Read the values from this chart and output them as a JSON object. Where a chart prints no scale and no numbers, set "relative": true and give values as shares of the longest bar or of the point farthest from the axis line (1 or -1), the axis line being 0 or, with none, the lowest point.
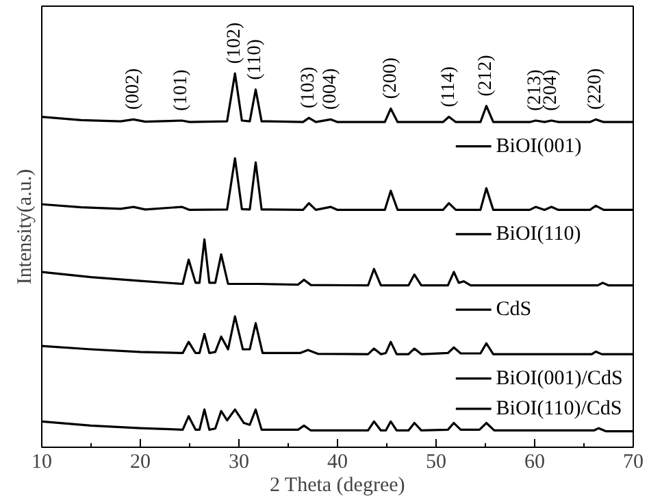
{
  "chart_data": {
    "type": "line",
    "relative": true,
    "xlabel": "2 Theta (degree)",
    "ylabel": "Intensity(a.u.)",
    "xlim": [
      10,
      70
    ],
    "xticks": [
      10,
      20,
      30,
      40,
      50,
      60,
      70
    ],
    "grid": false,
    "legend": "right",
    "marker": "none",
    "line_style": "solid",
    "series": [
      {
        "name": "BiOI(001)",
        "color": "#000000",
        "x": [
          10,
          14,
          18,
          19.3,
          20.5,
          24.2,
          25,
          28.8,
          29.6,
          30.3,
          31.1,
          31.7,
          32.3,
          33,
          36.5,
          37.1,
          37.8,
          39.3,
          40,
          44.8,
          45.4,
          46.1,
          50.7,
          51.3,
          52,
          54.5,
          55.1,
          55.8,
          59.5,
          60.1,
          61,
          61.7,
          62.4,
          65.6,
          66.2,
          67,
          70
        ],
        "values": [
          0.884,
          0.875,
          0.872,
          0.877,
          0.871,
          0.874,
          0.87,
          0.872,
          1.0,
          0.874,
          0.872,
          0.957,
          0.872,
          0.872,
          0.87,
          0.881,
          0.87,
          0.877,
          0.87,
          0.87,
          0.906,
          0.87,
          0.87,
          0.884,
          0.87,
          0.87,
          0.913,
          0.87,
          0.87,
          0.874,
          0.87,
          0.874,
          0.87,
          0.87,
          0.877,
          0.87,
          0.87
        ]
      },
      {
        "name": "BiOI(110)",
        "color": "#000000",
        "x": [
          10,
          14,
          18,
          19.3,
          20.5,
          24.2,
          25,
          28.8,
          29.6,
          30.3,
          31.1,
          31.7,
          32.3,
          33,
          36.5,
          37.1,
          37.8,
          39.3,
          40,
          44.8,
          45.4,
          46.1,
          50.7,
          51.3,
          52,
          54.5,
          55.1,
          55.8,
          59.5,
          60.1,
          61,
          61.7,
          62.4,
          65.6,
          66.2,
          67,
          70
        ],
        "values": [
          0.65,
          0.642,
          0.638,
          0.643,
          0.636,
          0.643,
          0.635,
          0.636,
          0.773,
          0.637,
          0.636,
          0.762,
          0.636,
          0.636,
          0.635,
          0.653,
          0.635,
          0.643,
          0.635,
          0.635,
          0.686,
          0.635,
          0.635,
          0.653,
          0.635,
          0.635,
          0.693,
          0.635,
          0.635,
          0.643,
          0.635,
          0.643,
          0.635,
          0.635,
          0.646,
          0.635,
          0.635
        ]
      },
      {
        "name": "CdS",
        "color": "#000000",
        "x": [
          10,
          15,
          20,
          24.3,
          24.9,
          25.6,
          26,
          26.5,
          27,
          27.6,
          28.2,
          28.9,
          32,
          36,
          36.6,
          37.3,
          43.1,
          43.7,
          44.4,
          47.2,
          47.8,
          48.5,
          51.2,
          51.8,
          52.3,
          52.8,
          53.5,
          66.4,
          66.9,
          67.5,
          70
        ],
        "values": [
          0.469,
          0.455,
          0.445,
          0.437,
          0.502,
          0.44,
          0.44,
          0.556,
          0.44,
          0.44,
          0.516,
          0.437,
          0.437,
          0.435,
          0.448,
          0.434,
          0.433,
          0.477,
          0.433,
          0.433,
          0.462,
          0.433,
          0.433,
          0.469,
          0.44,
          0.444,
          0.433,
          0.433,
          0.44,
          0.433,
          0.433
        ]
      },
      {
        "name": "BiOI(001)/CdS",
        "color": "#000000",
        "x": [
          10,
          15,
          20,
          24.3,
          24.9,
          25.6,
          26,
          26.5,
          27,
          27.6,
          28.2,
          28.9,
          29.6,
          30.4,
          31.1,
          31.7,
          32.4,
          36.2,
          37,
          38,
          43.1,
          43.7,
          44.4,
          44.9,
          45.4,
          46,
          47.2,
          47.8,
          48.5,
          51.2,
          51.8,
          52.5,
          54.5,
          55.1,
          55.8,
          65.8,
          66.2,
          66.8,
          70
        ],
        "values": [
          0.271,
          0.262,
          0.255,
          0.252,
          0.282,
          0.252,
          0.252,
          0.303,
          0.252,
          0.255,
          0.296,
          0.262,
          0.35,
          0.262,
          0.262,
          0.332,
          0.252,
          0.252,
          0.26,
          0.25,
          0.249,
          0.264,
          0.249,
          0.252,
          0.282,
          0.249,
          0.249,
          0.264,
          0.249,
          0.252,
          0.267,
          0.251,
          0.251,
          0.278,
          0.249,
          0.249,
          0.256,
          0.249,
          0.249
        ]
      },
      {
        "name": "BiOI(110)/CdS",
        "color": "#000000",
        "x": [
          10,
          15,
          20,
          24.3,
          24.9,
          25.6,
          26,
          26.5,
          27,
          27.6,
          28.2,
          28.8,
          29.6,
          30.5,
          31.1,
          31.7,
          32.3,
          36,
          36.6,
          37.3,
          43.1,
          43.7,
          44.4,
          44.9,
          45.4,
          46,
          47.2,
          47.8,
          48.5,
          51.2,
          51.8,
          52.5,
          54.4,
          55.1,
          55.9,
          66,
          66.5,
          67.2,
          70
        ],
        "values": [
          0.069,
          0.058,
          0.051,
          0.047,
          0.083,
          0.047,
          0.047,
          0.101,
          0.047,
          0.05,
          0.097,
          0.072,
          0.101,
          0.065,
          0.06,
          0.101,
          0.047,
          0.047,
          0.058,
          0.045,
          0.045,
          0.069,
          0.045,
          0.045,
          0.069,
          0.045,
          0.045,
          0.065,
          0.045,
          0.047,
          0.065,
          0.047,
          0.047,
          0.065,
          0.045,
          0.045,
          0.051,
          0.043,
          0.043
        ]
      }
    ],
    "annotations": [
      {
        "text": "(002)",
        "x": 19.3,
        "y": 0.877
      },
      {
        "text": "(101)",
        "x": 24.2,
        "y": 0.874
      },
      {
        "text": "(102)",
        "x": 29.6,
        "y": 1.0
      },
      {
        "text": "(110)",
        "x": 31.7,
        "y": 0.957
      },
      {
        "text": "(103)",
        "x": 37.1,
        "y": 0.881
      },
      {
        "text": "(004)",
        "x": 39.3,
        "y": 0.877
      },
      {
        "text": "(200)",
        "x": 45.4,
        "y": 0.906
      },
      {
        "text": "(114)",
        "x": 51.3,
        "y": 0.884
      },
      {
        "text": "(212)",
        "x": 55.1,
        "y": 0.913
      },
      {
        "text": "(213)",
        "x": 60.1,
        "y": 0.874
      },
      {
        "text": "(204)",
        "x": 61.7,
        "y": 0.874
      },
      {
        "text": "(220)",
        "x": 66.2,
        "y": 0.877
      }
    ]
  }
}
